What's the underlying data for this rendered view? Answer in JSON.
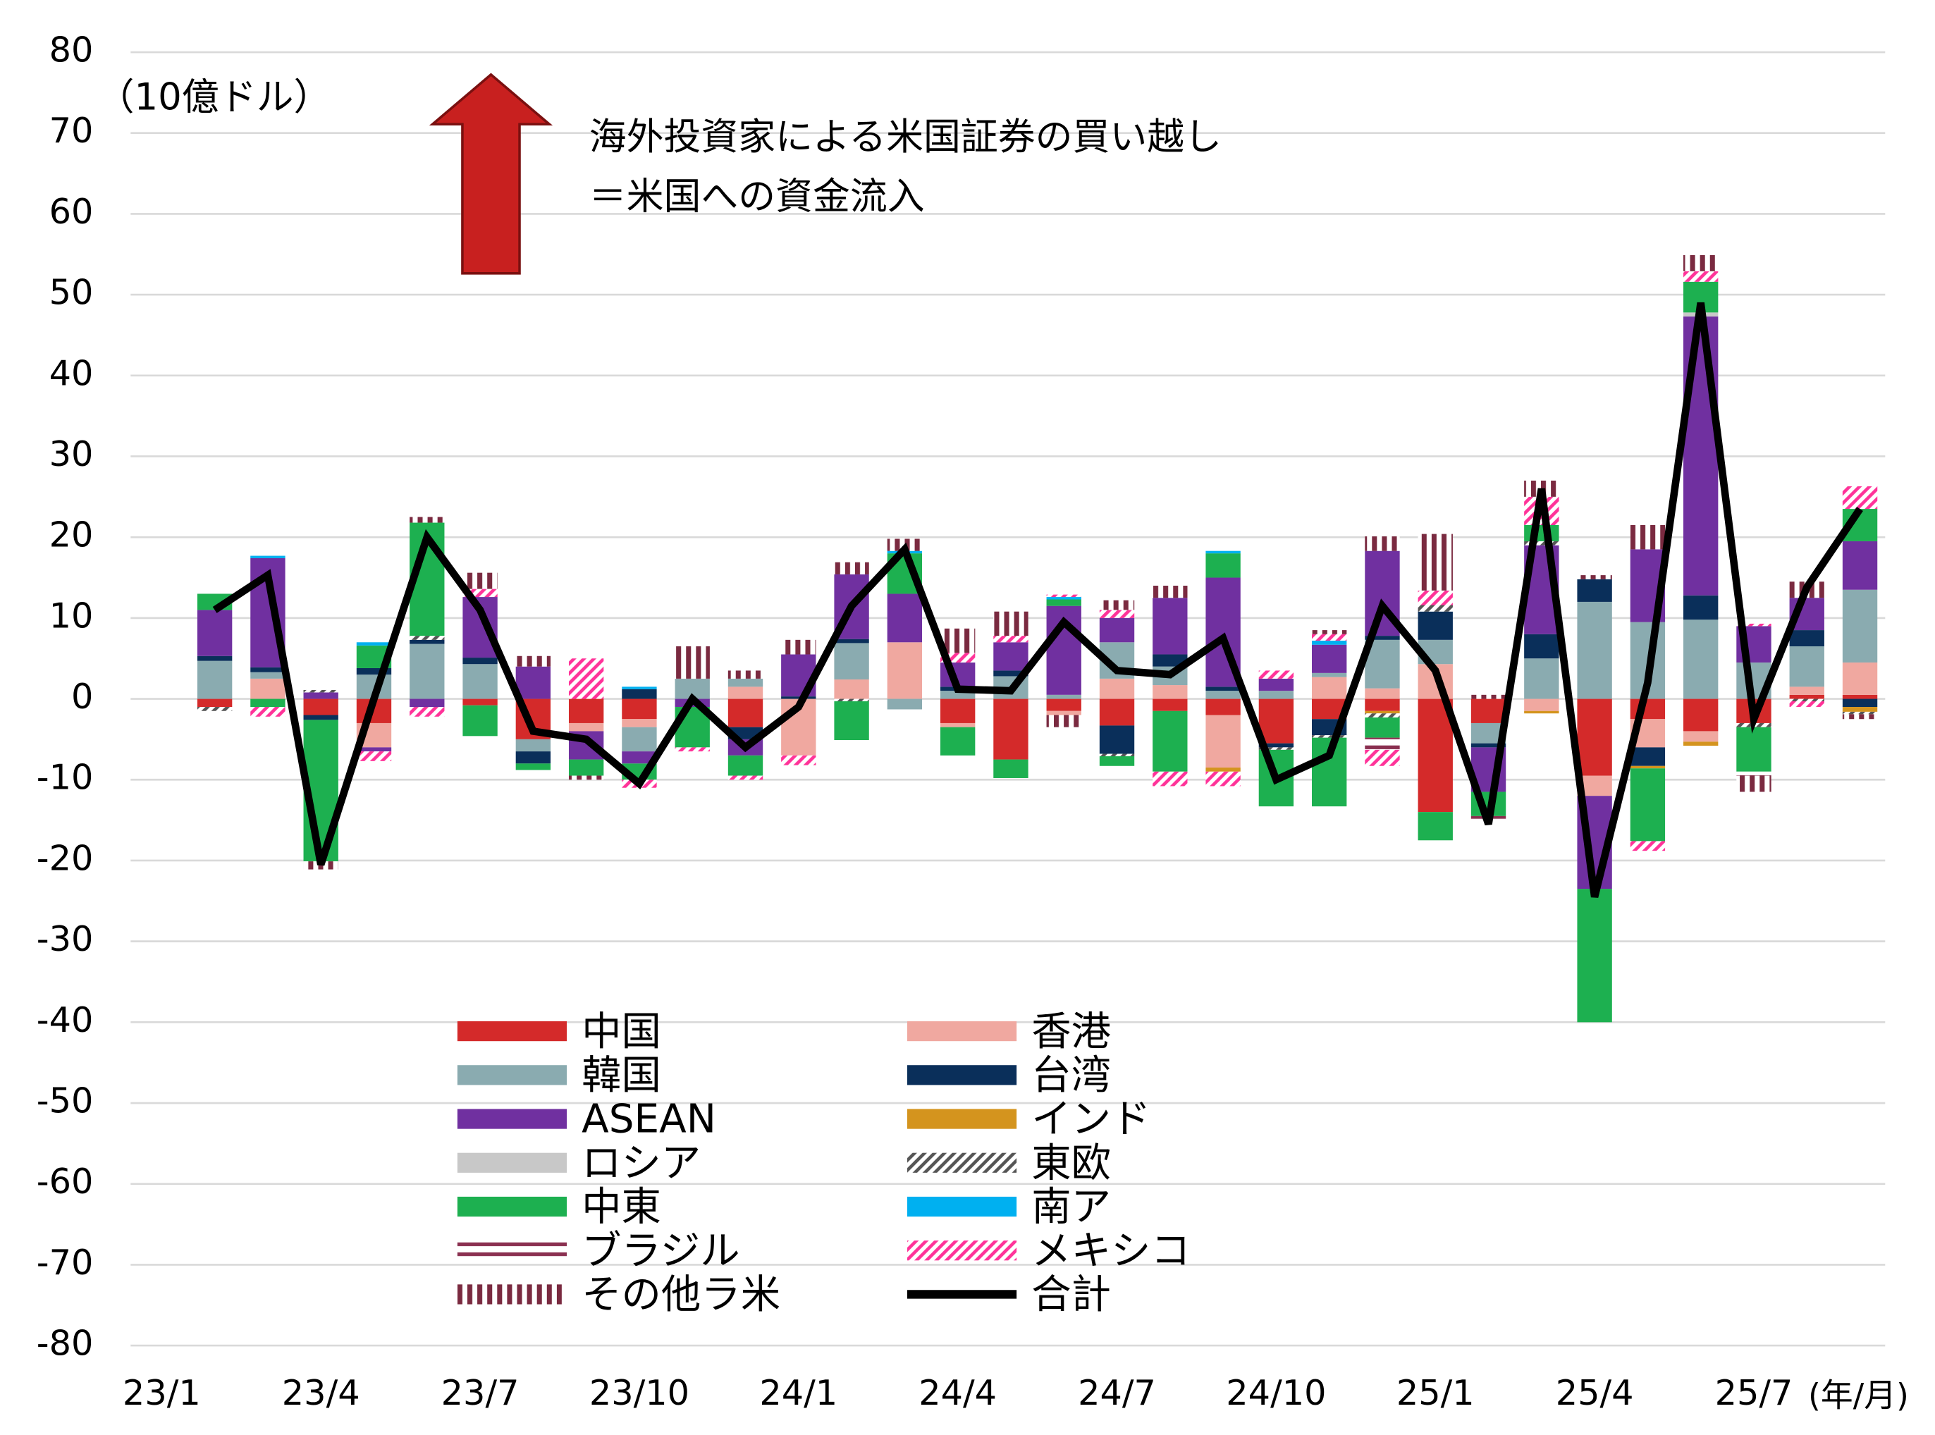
{
  "chart_data": {
    "type": "bar",
    "stacked": true,
    "unit_label": "（10億ドル）",
    "annotation": [
      "海外投資家による米国証券の買い越し",
      "＝米国への資金流入"
    ],
    "x_unit_label": "(年/月)",
    "categories": [
      "23/1",
      null,
      null,
      "23/4",
      null,
      null,
      "23/7",
      null,
      null,
      "23/10",
      null,
      null,
      "24/1",
      null,
      null,
      "24/4",
      null,
      null,
      "24/7",
      null,
      null,
      "24/10",
      null,
      null,
      "25/1",
      null,
      null,
      "25/4",
      null,
      null,
      "25/7",
      null,
      null
    ],
    "ylim": [
      -80,
      80
    ],
    "yticks": [
      80,
      70,
      60,
      50,
      40,
      30,
      20,
      10,
      0,
      -10,
      -20,
      -30,
      -40,
      -50,
      -60,
      -70,
      -80
    ],
    "grid": true,
    "series": [
      {
        "name": "中国",
        "color": "#d42a2a",
        "values": [
          null,
          -1,
          0,
          -2,
          -3,
          0,
          -0.8,
          -5,
          -3,
          -2.5,
          0,
          -3.5,
          0,
          0,
          0,
          -3,
          -7.5,
          -1.5,
          -3.3,
          -1.5,
          -2,
          -5.5,
          -2.5,
          -1.5,
          -14,
          -3,
          0,
          -9.5,
          -2.5,
          -4,
          -3,
          0.5,
          0.5
        ]
      },
      {
        "name": "香港",
        "color": "#f0a8a0",
        "values": [
          null,
          0,
          2.5,
          0,
          -3,
          0,
          0,
          0,
          -1,
          -1,
          0,
          1.5,
          -7,
          2.4,
          7,
          -0.5,
          0,
          -0.5,
          2.5,
          1.7,
          -6.5,
          0,
          2.7,
          1.3,
          4.3,
          0,
          -1.5,
          -2.5,
          -3.5,
          -1.3,
          0,
          1,
          4
        ]
      },
      {
        "name": "韓国",
        "color": "#8aabb0",
        "values": [
          null,
          4.7,
          0.8,
          0,
          3,
          6.8,
          4.3,
          -1.5,
          0,
          -3,
          2.5,
          1,
          0,
          4.5,
          -1.3,
          1,
          2.8,
          0.5,
          4.5,
          2.3,
          1,
          1,
          0.5,
          6,
          3,
          -2.5,
          5,
          12,
          9.5,
          9.8,
          4.5,
          5,
          9
        ]
      },
      {
        "name": "台湾",
        "color": "#0a2f5a",
        "values": [
          null,
          0.6,
          0.6,
          -0.6,
          0.8,
          0.5,
          0.8,
          -1.5,
          0,
          1.2,
          0,
          -1.5,
          0.3,
          0.5,
          0,
          0.5,
          0.7,
          0,
          -3.5,
          1.5,
          0.5,
          -0.5,
          -2,
          0.5,
          3.5,
          -0.5,
          3,
          2.8,
          -2.3,
          3,
          0,
          2,
          -1
        ]
      },
      {
        "name": "ASEAN",
        "color": "#7030a0",
        "values": [
          null,
          5.7,
          13.5,
          0.8,
          -0.5,
          -1,
          7.5,
          4,
          -3.5,
          -1.5,
          -1,
          -2,
          5.2,
          8,
          6,
          3,
          3.5,
          11,
          3,
          7,
          13.5,
          1.5,
          3.5,
          10.5,
          0,
          -5.5,
          11,
          -11.5,
          9,
          34.5,
          4.5,
          4,
          6
        ]
      },
      {
        "name": "インド",
        "color": "#d4941e",
        "values": [
          null,
          0,
          0,
          0,
          0,
          0,
          0,
          0,
          0,
          0,
          0,
          0,
          0,
          0,
          0,
          0,
          0,
          0,
          0,
          0,
          -0.5,
          0,
          0,
          -0.3,
          0,
          0,
          -0.3,
          0,
          -0.3,
          -0.5,
          0,
          0,
          -0.6
        ]
      },
      {
        "name": "ロシア",
        "color": "#c8c8c8",
        "values": [
          null,
          0,
          0,
          0,
          0,
          0,
          0,
          0,
          0,
          0,
          0,
          0,
          0,
          0,
          0,
          0,
          0,
          0,
          0,
          0,
          0,
          0,
          0,
          0,
          0,
          0,
          0,
          0,
          0,
          0.5,
          0,
          0,
          0
        ]
      },
      {
        "name": "東欧",
        "color": "#555555",
        "pattern": "diagonal",
        "values": [
          null,
          -0.5,
          0,
          0.3,
          0,
          0.5,
          0,
          0,
          0,
          0,
          0,
          0,
          0,
          -0.3,
          0,
          0,
          0,
          0,
          -0.3,
          0,
          0,
          -0.3,
          -0.3,
          -0.5,
          0.8,
          0,
          0.5,
          0,
          0,
          0,
          -0.5,
          -0.3,
          -0.3
        ]
      },
      {
        "name": "中東",
        "color": "#1db050",
        "values": [
          null,
          2,
          -1,
          -17.5,
          2.8,
          14,
          -3.8,
          -0.8,
          -2,
          -2,
          -5,
          -2.5,
          0,
          -4.8,
          5,
          -3.5,
          -2.3,
          0.8,
          -1.2,
          -7.5,
          3,
          -7,
          -8.5,
          -2.5,
          -3.5,
          -3,
          2,
          -16.5,
          -9,
          3.8,
          -5.5,
          0,
          4
        ]
      },
      {
        "name": "南ア",
        "color": "#00b0f0",
        "values": [
          null,
          0,
          0.3,
          0,
          0.4,
          0,
          0,
          0,
          0,
          0.3,
          0,
          0,
          0,
          0,
          0.3,
          0,
          0,
          0.3,
          0,
          0,
          0.3,
          0,
          0.5,
          0,
          0,
          0,
          0,
          0,
          0,
          0,
          0,
          0,
          0
        ]
      },
      {
        "name": "ブラジル",
        "color": "#8a3050",
        "pattern": "horizontal",
        "values": [
          null,
          0,
          0,
          0,
          0,
          0,
          0,
          0,
          0,
          0,
          0,
          0,
          0,
          0,
          0,
          0,
          0,
          0,
          0,
          0,
          0,
          0,
          0,
          -1.5,
          0,
          -0.5,
          0,
          0,
          0,
          0,
          -0.5,
          0,
          0
        ]
      },
      {
        "name": "メキシコ",
        "color": "#ff3399",
        "pattern": "diagonal",
        "values": [
          null,
          0,
          -1.2,
          0,
          -1.2,
          -1.2,
          1,
          0,
          5,
          -1,
          -0.5,
          -0.5,
          -1.2,
          0,
          0,
          1.2,
          0.8,
          0.3,
          1,
          -1.8,
          -1.8,
          1,
          0.8,
          -2,
          1.8,
          0,
          3.5,
          0,
          -1.2,
          1.3,
          0.3,
          -0.7,
          2.8
        ]
      },
      {
        "name": "その他ラ米",
        "color": "#7a2a40",
        "pattern": "vertical",
        "values": [
          null,
          0,
          0,
          -1,
          0,
          0.7,
          2,
          1.3,
          -0.5,
          0,
          4,
          1,
          1.8,
          1.5,
          1.5,
          3,
          3,
          -1.5,
          1.2,
          1.5,
          0,
          0,
          0.5,
          1.8,
          7,
          0.5,
          2,
          0.5,
          3,
          2,
          -2,
          2,
          -0.6
        ]
      },
      {
        "name": "合計",
        "color": "#000000",
        "type": "line",
        "values": [
          null,
          11,
          15.3,
          -20.5,
          0,
          20,
          11,
          -4,
          -5,
          -10.5,
          0,
          -6,
          -1,
          11.5,
          18.5,
          1.2,
          1,
          9.5,
          3.5,
          3,
          7.5,
          -10,
          -7,
          11.5,
          3.5,
          -15.5,
          26,
          -24.5,
          2,
          49,
          -2.5,
          13.8,
          23.5
        ]
      }
    ]
  }
}
